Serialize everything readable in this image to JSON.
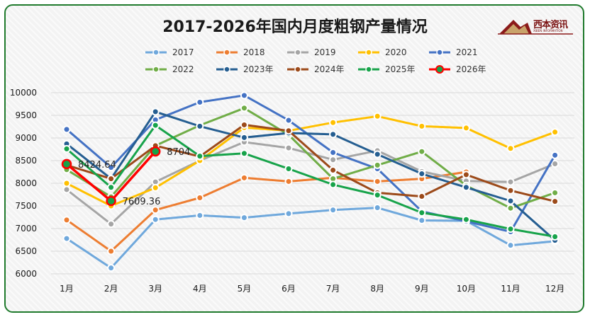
{
  "colors": {
    "frame_border": "#1f7a2c",
    "gridline": "#d9d9d9"
  },
  "logo": {
    "text": "西本资讯",
    "subtext": "XIBEN INFORMATION"
  },
  "chart_data": {
    "type": "line",
    "title": "2017-2026年国内月度粗钢产量情况",
    "categories": [
      "1月",
      "2月",
      "3月",
      "4月",
      "5月",
      "6月",
      "7月",
      "8月",
      "9月",
      "10月",
      "11月",
      "12月"
    ],
    "y_ticks": [
      6000,
      6500,
      7000,
      7500,
      8000,
      8500,
      9000,
      9500,
      10000
    ],
    "ylim": [
      6000,
      10000
    ],
    "grid": true,
    "legend_position": "top",
    "series": [
      {
        "name": "2017",
        "color": "#6fa8dc",
        "values": [
          6780,
          6130,
          7200,
          7290,
          7240,
          7330,
          7410,
          7460,
          7180,
          7170,
          6630,
          6720
        ]
      },
      {
        "name": "2018",
        "color": "#ed7d31",
        "values": [
          7190,
          6500,
          7410,
          7680,
          8120,
          8040,
          8120,
          8040,
          8100,
          8250,
          null,
          null
        ]
      },
      {
        "name": "2019",
        "color": "#a5a5a5",
        "values": [
          7860,
          7100,
          8030,
          8500,
          8910,
          8780,
          8520,
          8720,
          8260,
          8050,
          8030,
          8430
        ]
      },
      {
        "name": "2020",
        "color": "#ffc000",
        "values": [
          8000,
          7500,
          7900,
          8500,
          9230,
          9160,
          9340,
          9480,
          9260,
          9220,
          8770,
          9130
        ]
      },
      {
        "name": "2021",
        "color": "#4472c4",
        "values": [
          9190,
          8350,
          9400,
          9790,
          9940,
          9390,
          8680,
          8320,
          7380,
          7160,
          6930,
          8620
        ]
      },
      {
        "name": "2022",
        "color": "#70ad47",
        "values": [
          8300,
          7700,
          8830,
          9280,
          9660,
          9070,
          8100,
          8400,
          8700,
          7950,
          7450,
          7790
        ]
      },
      {
        "name": "2023年",
        "color": "#255e91",
        "values": [
          8870,
          8100,
          9580,
          9260,
          9010,
          9110,
          9080,
          8640,
          8210,
          7910,
          7610,
          6740
        ]
      },
      {
        "name": "2024年",
        "color": "#9c4a1a",
        "values": [
          8400,
          8100,
          8830,
          8590,
          9290,
          9160,
          8290,
          7790,
          7710,
          8190,
          7840,
          7600
        ]
      },
      {
        "name": "2025年",
        "color": "#17a34a",
        "values": [
          8760,
          7910,
          9280,
          8600,
          8660,
          8320,
          7970,
          7740,
          7350,
          7200,
          6990,
          6820
        ]
      },
      {
        "name": "2026年",
        "color": "#ff0000",
        "values": [
          8424.64,
          7609.36,
          8704,
          null,
          null,
          null,
          null,
          null,
          null,
          null,
          null,
          null
        ]
      }
    ],
    "data_labels": [
      {
        "series": "2026年",
        "index": 0,
        "text": "8424.64"
      },
      {
        "series": "2026年",
        "index": 1,
        "text": "7609.36"
      },
      {
        "series": "2026年",
        "index": 2,
        "text": "8704"
      }
    ]
  }
}
